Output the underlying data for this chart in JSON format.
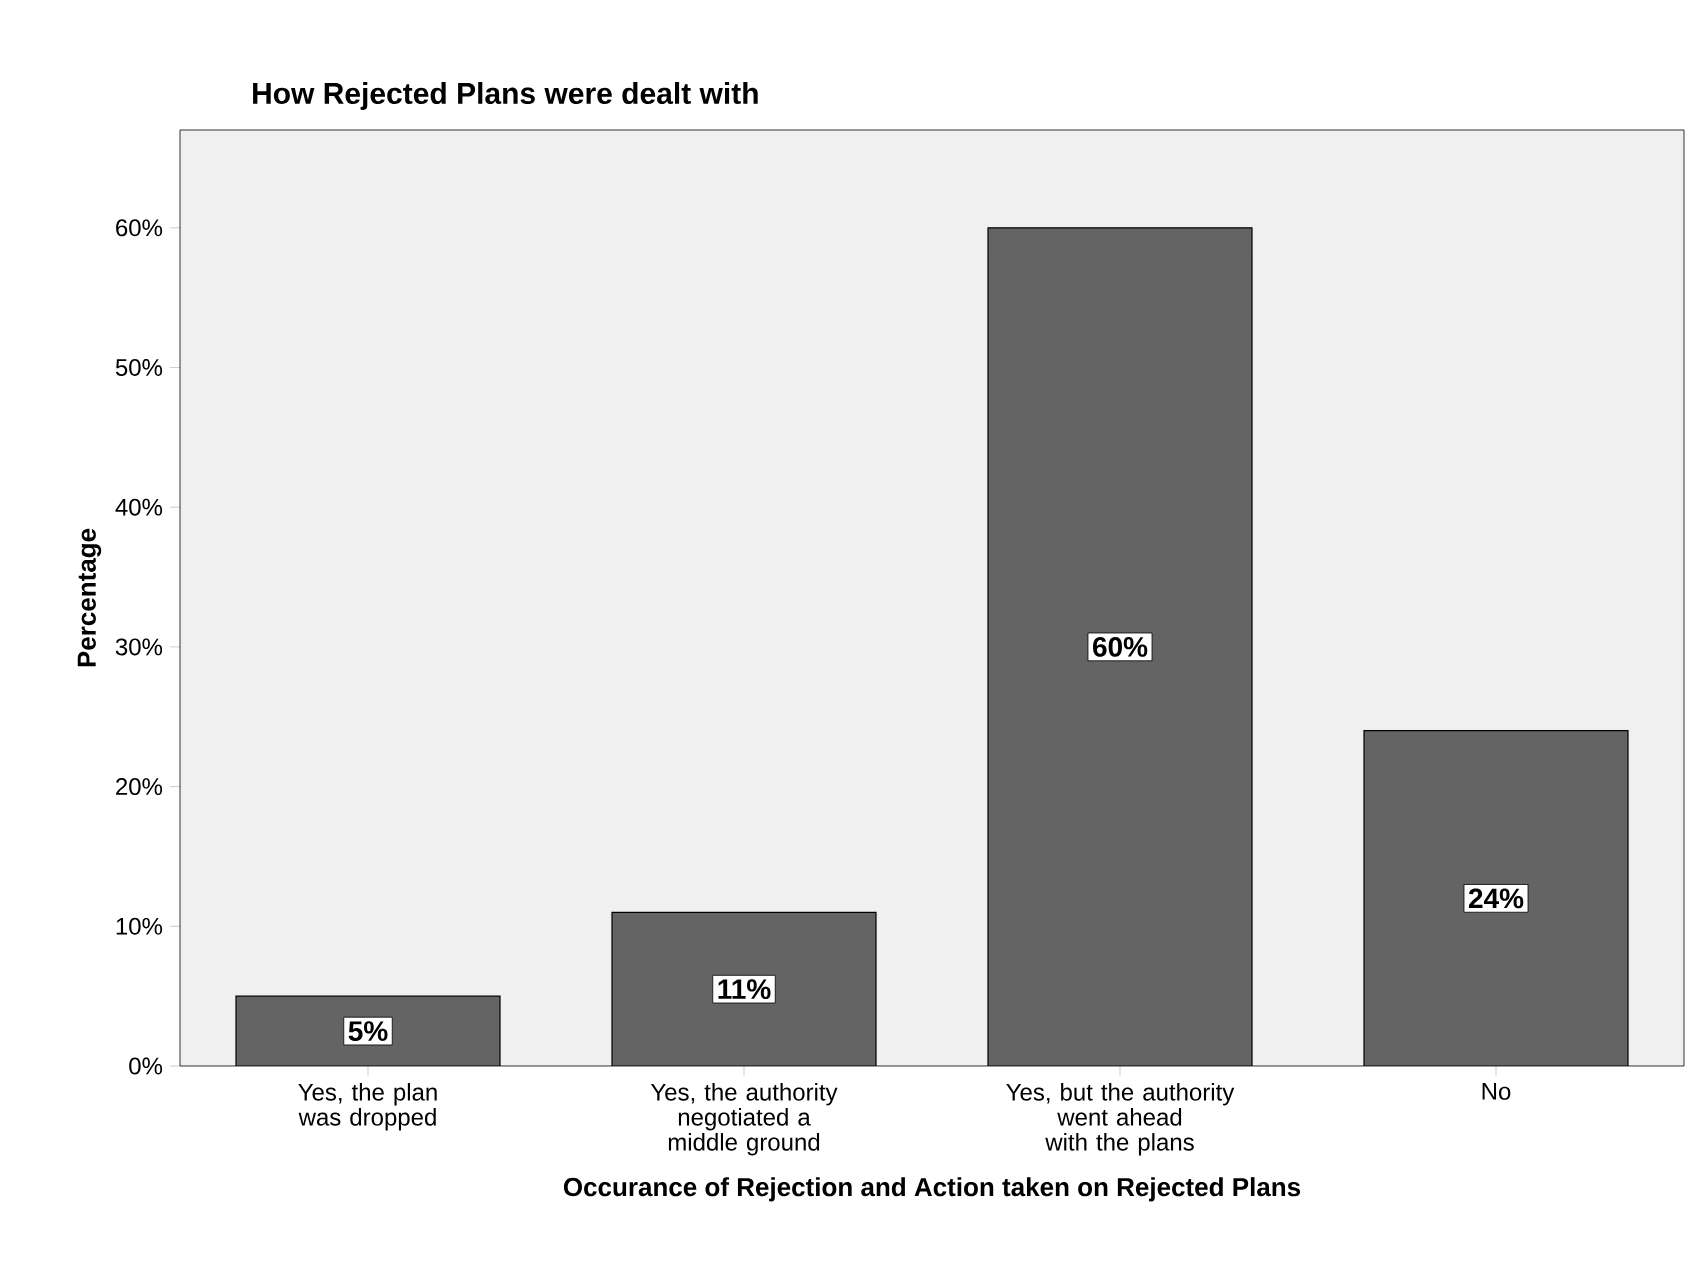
{
  "chart_data": {
    "type": "bar",
    "title": "How Rejected Plans were dealt with",
    "xlabel": "Occurance of Rejection and Action taken on Rejected Plans",
    "ylabel": "Percentage",
    "categories": [
      "Yes, the plan was dropped",
      "Yes, the authority negotiated a middle ground",
      "Yes, but the authority went ahead with the plans",
      "No"
    ],
    "values": [
      5,
      11,
      60,
      24
    ],
    "color": "#646464",
    "value_labels": [
      "5%",
      "11%",
      "60%",
      "24%"
    ],
    "ylim": [
      0,
      67
    ],
    "yticks": [
      {
        "value": 0,
        "label": "0%"
      },
      {
        "value": 10,
        "label": "10%"
      },
      {
        "value": 20,
        "label": "20%"
      },
      {
        "value": 30,
        "label": "30%"
      },
      {
        "value": 40,
        "label": "40%"
      },
      {
        "value": 50,
        "label": "50%"
      },
      {
        "value": 60,
        "label": "60%"
      }
    ],
    "grid": false
  }
}
